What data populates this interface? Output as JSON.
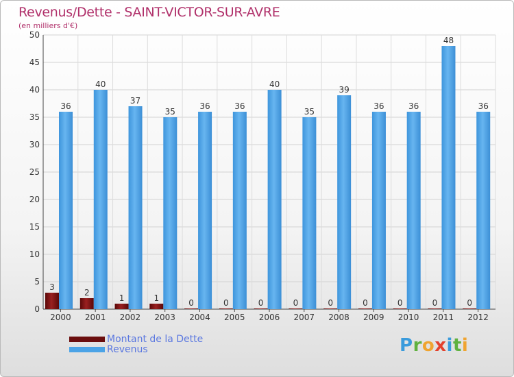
{
  "chart_data": {
    "type": "bar",
    "title": "Revenus/Dette - SAINT-VICTOR-SUR-AVRE",
    "subtitle": "(en milliers d'€)",
    "categories": [
      "2000",
      "2001",
      "2002",
      "2003",
      "2004",
      "2005",
      "2006",
      "2007",
      "2008",
      "2009",
      "2010",
      "2011",
      "2012"
    ],
    "series": [
      {
        "name": "Montant de la Dette",
        "color": "#7a1010",
        "values": [
          3,
          2,
          1,
          1,
          0,
          0,
          0,
          0,
          0,
          0,
          0,
          0,
          0
        ]
      },
      {
        "name": "Revenus",
        "color": "#4ba3e6",
        "values": [
          36,
          40,
          37,
          35,
          36,
          36,
          40,
          35,
          39,
          36,
          36,
          48,
          36
        ]
      }
    ],
    "ylim": [
      0,
      50
    ],
    "yticks": [
      0,
      5,
      10,
      15,
      20,
      25,
      30,
      35,
      40,
      45,
      50
    ],
    "grid": true,
    "legend": "bottom-left"
  },
  "logo": {
    "letters": [
      "P",
      "r",
      "o",
      "x",
      "i",
      "t",
      "i"
    ]
  }
}
